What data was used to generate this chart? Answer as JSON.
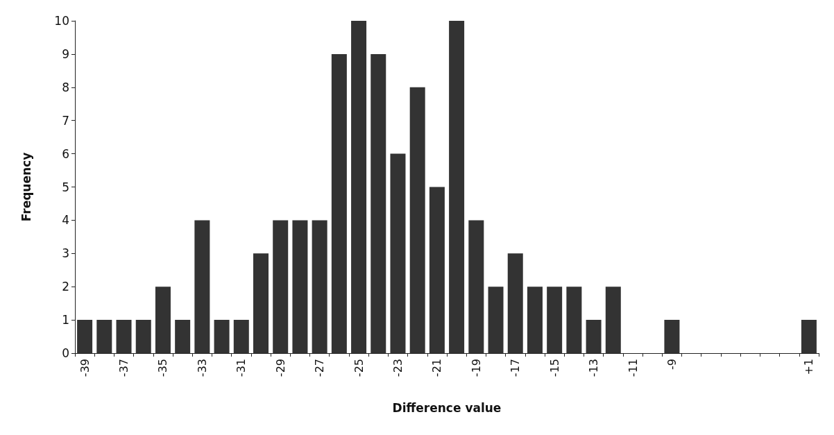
{
  "chart_data": {
    "type": "bar",
    "xlabel": "Difference value",
    "ylabel": "Frequency",
    "categories": [
      "-39",
      null,
      "-37",
      null,
      "-35",
      null,
      "-33",
      null,
      "-31",
      null,
      "-29",
      null,
      "-27",
      null,
      "-25",
      null,
      "-23",
      null,
      "-21",
      null,
      "-19",
      null,
      "-17",
      null,
      "-15",
      null,
      "-13",
      null,
      "-11",
      null,
      "-9",
      null,
      null,
      null,
      null,
      null,
      null,
      "+1"
    ],
    "values": [
      1,
      1,
      1,
      1,
      2,
      1,
      4,
      1,
      1,
      3,
      4,
      4,
      4,
      9,
      10,
      9,
      6,
      8,
      5,
      10,
      4,
      2,
      3,
      2,
      2,
      2,
      1,
      2,
      0,
      0,
      1,
      0,
      0,
      0,
      0,
      0,
      0,
      1
    ],
    "color": "#333333",
    "ylim": [
      0,
      10
    ],
    "yticks": [
      0,
      1,
      2,
      3,
      4,
      5,
      6,
      7,
      8,
      9,
      10
    ],
    "grid": false
  }
}
